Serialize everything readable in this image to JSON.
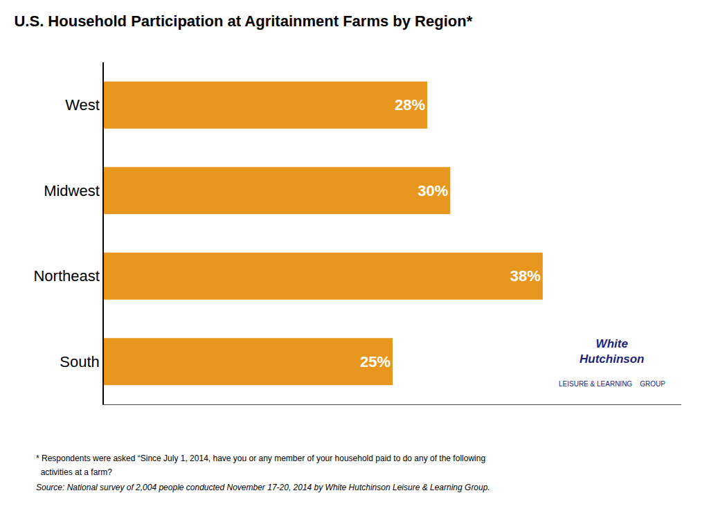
{
  "chart_data": {
    "type": "bar",
    "orientation": "horizontal",
    "title": "U.S. Household Participation at Agritainment Farms by Region*",
    "categories": [
      "South",
      "Northeast",
      "Midwest",
      "West"
    ],
    "values": [
      25,
      38,
      30,
      28
    ],
    "value_labels": [
      "25%",
      "38%",
      "30%",
      "28%"
    ],
    "data_labels": true,
    "color": "#E8971E",
    "xlim": [
      0,
      50
    ],
    "tick_labels": "y",
    "grid": false,
    "annotations": [
      "* Respondents were asked “Since July 1, 2014, have you or any member of your household paid to do any of the following",
      "  activities at a farm?",
      "Source: National survey of 2,004 people conducted November 17-20, 2014 by White Hutchinson Leisure & Learning Group.",
      "White\nHutchinson",
      "LEISURE & LEARNING    GROUP"
    ]
  }
}
